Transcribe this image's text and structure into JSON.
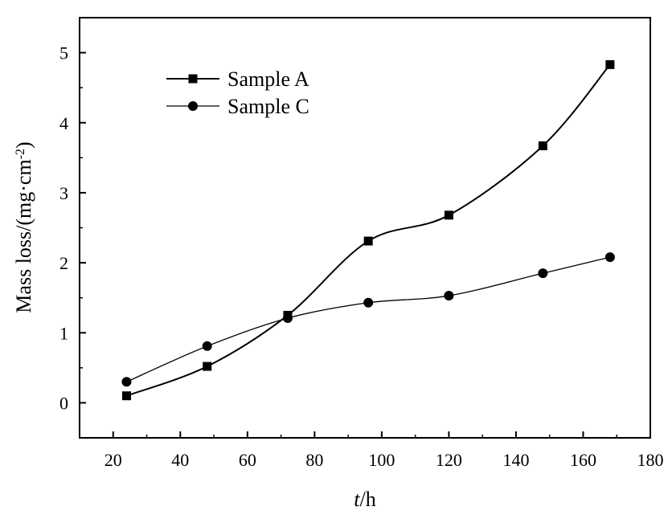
{
  "chart_data": {
    "type": "line",
    "title": "",
    "xlabel": {
      "italic": "t",
      "rest": "/h"
    },
    "ylabel": {
      "main": "Mass loss/(mg·cm",
      "sup": "-2",
      "close": ")"
    },
    "xlim": [
      10,
      180
    ],
    "ylim": [
      -0.5,
      5.5
    ],
    "xticks": [
      20,
      40,
      60,
      80,
      100,
      120,
      140,
      160,
      180
    ],
    "yticks": [
      0,
      1,
      2,
      3,
      4,
      5
    ],
    "grid": false,
    "legend_position": "top-left",
    "series": [
      {
        "name": "Sample A",
        "marker": "square",
        "color": "#000000",
        "x": [
          24,
          48,
          72,
          96,
          120,
          148,
          168
        ],
        "y": [
          0.1,
          0.52,
          1.25,
          2.31,
          2.68,
          3.67,
          4.83
        ]
      },
      {
        "name": "Sample C",
        "marker": "circle",
        "color": "#000000",
        "x": [
          24,
          48,
          72,
          96,
          120,
          148,
          168
        ],
        "y": [
          0.3,
          0.81,
          1.21,
          1.43,
          1.53,
          1.85,
          2.08
        ]
      }
    ]
  }
}
